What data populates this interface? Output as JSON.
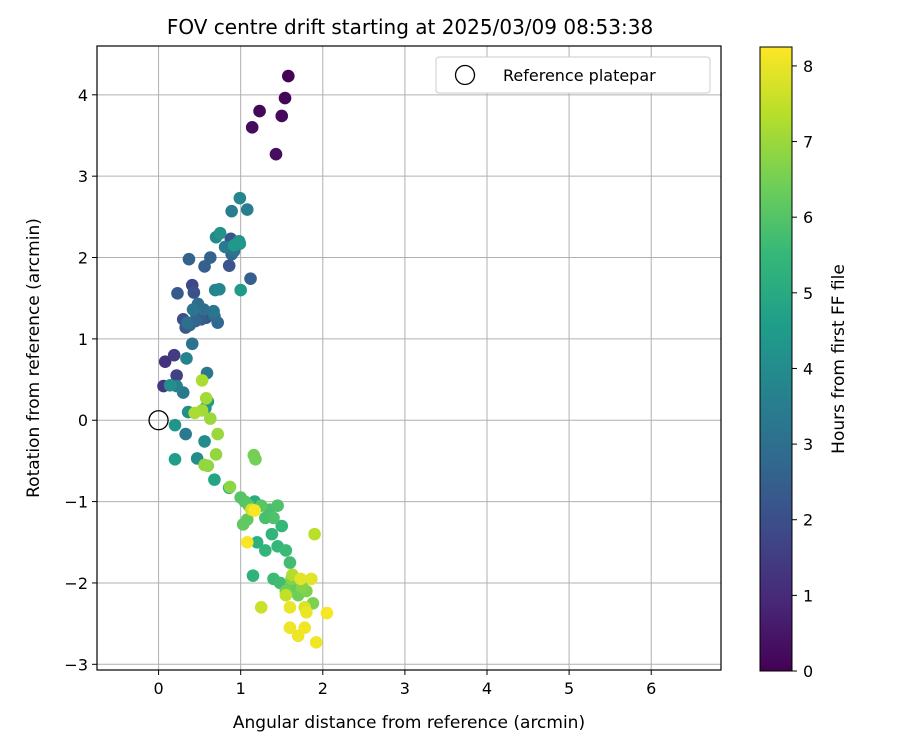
{
  "chart_data": {
    "type": "scatter",
    "title": "FOV centre drift starting at 2025/03/09 08:53:38",
    "xlabel": "Angular distance from reference (arcmin)",
    "ylabel": "Rotation from reference (arcmin)",
    "xlim": [
      -0.75,
      6.85
    ],
    "ylim": [
      -3.07,
      4.6
    ],
    "xticks": [
      0,
      1,
      2,
      3,
      4,
      5,
      6
    ],
    "yticks": [
      -3,
      -2,
      -1,
      0,
      1,
      2,
      3,
      4
    ],
    "grid": true,
    "legend": {
      "location": "top-right",
      "entries": [
        "Reference platepar"
      ]
    },
    "reference_point": {
      "x": 0,
      "y": 0
    },
    "colorbar": {
      "label": "Hours from first FF file",
      "colormap": "viridis",
      "range": [
        0,
        8.25
      ],
      "ticks": [
        0,
        1,
        2,
        3,
        4,
        5,
        6,
        7,
        8
      ]
    },
    "point_color_value": "hours",
    "points": [
      {
        "x": 1.58,
        "y": 4.23,
        "hours": 0.05
      },
      {
        "x": 1.54,
        "y": 3.96,
        "hours": 0.1
      },
      {
        "x": 1.23,
        "y": 3.8,
        "hours": 0.15
      },
      {
        "x": 1.5,
        "y": 3.74,
        "hours": 0.2
      },
      {
        "x": 1.14,
        "y": 3.6,
        "hours": 0.25
      },
      {
        "x": 1.43,
        "y": 3.27,
        "hours": 0.3
      },
      {
        "x": 0.08,
        "y": 0.72,
        "hours": 1.2
      },
      {
        "x": 0.06,
        "y": 0.42,
        "hours": 1.3
      },
      {
        "x": 0.19,
        "y": 0.8,
        "hours": 1.5
      },
      {
        "x": 0.22,
        "y": 0.55,
        "hours": 1.6
      },
      {
        "x": 0.41,
        "y": 1.66,
        "hours": 1.8
      },
      {
        "x": 0.3,
        "y": 1.24,
        "hours": 2.0
      },
      {
        "x": 0.43,
        "y": 1.57,
        "hours": 2.1
      },
      {
        "x": 0.58,
        "y": 1.26,
        "hours": 2.1
      },
      {
        "x": 0.86,
        "y": 1.9,
        "hours": 2.2
      },
      {
        "x": 0.88,
        "y": 2.23,
        "hours": 2.2
      },
      {
        "x": 0.23,
        "y": 1.56,
        "hours": 2.3
      },
      {
        "x": 0.33,
        "y": 1.14,
        "hours": 2.3
      },
      {
        "x": 0.46,
        "y": 1.3,
        "hours": 2.4
      },
      {
        "x": 0.52,
        "y": 1.24,
        "hours": 2.4
      },
      {
        "x": 0.56,
        "y": 1.89,
        "hours": 2.5
      },
      {
        "x": 1.12,
        "y": 1.74,
        "hours": 2.5
      },
      {
        "x": 0.37,
        "y": 1.98,
        "hours": 2.6
      },
      {
        "x": 0.63,
        "y": 2.0,
        "hours": 2.6
      },
      {
        "x": 0.38,
        "y": 1.17,
        "hours": 2.7
      },
      {
        "x": 0.45,
        "y": 1.22,
        "hours": 2.7
      },
      {
        "x": 0.72,
        "y": 1.2,
        "hours": 2.8
      },
      {
        "x": 0.89,
        "y": 2.04,
        "hours": 2.8
      },
      {
        "x": 0.48,
        "y": 1.43,
        "hours": 2.9
      },
      {
        "x": 0.68,
        "y": 1.28,
        "hours": 2.9
      },
      {
        "x": 0.35,
        "y": 1.2,
        "hours": 3.0
      },
      {
        "x": 0.55,
        "y": 1.36,
        "hours": 3.0
      },
      {
        "x": 0.41,
        "y": 0.94,
        "hours": 3.1
      },
      {
        "x": 0.92,
        "y": 2.08,
        "hours": 3.1
      },
      {
        "x": 0.42,
        "y": 1.36,
        "hours": 3.2
      },
      {
        "x": 0.67,
        "y": 1.34,
        "hours": 3.2
      },
      {
        "x": 0.59,
        "y": 0.58,
        "hours": 3.3
      },
      {
        "x": 0.3,
        "y": 0.34,
        "hours": 3.3
      },
      {
        "x": 0.33,
        "y": -0.17,
        "hours": 3.4
      },
      {
        "x": 0.81,
        "y": 2.13,
        "hours": 3.4
      },
      {
        "x": 0.89,
        "y": 2.57,
        "hours": 3.5
      },
      {
        "x": 1.08,
        "y": 2.59,
        "hours": 3.5
      },
      {
        "x": 0.22,
        "y": 0.42,
        "hours": 3.6
      },
      {
        "x": 0.34,
        "y": 0.76,
        "hours": 3.7
      },
      {
        "x": 0.69,
        "y": 1.6,
        "hours": 3.7
      },
      {
        "x": 0.74,
        "y": 1.61,
        "hours": 3.8
      },
      {
        "x": 0.99,
        "y": 2.73,
        "hours": 3.8
      },
      {
        "x": 0.7,
        "y": 2.25,
        "hours": 3.9
      },
      {
        "x": 0.56,
        "y": -0.26,
        "hours": 4.0
      },
      {
        "x": 0.47,
        "y": -0.47,
        "hours": 4.0
      },
      {
        "x": 0.14,
        "y": 0.43,
        "hours": 4.1
      },
      {
        "x": 0.36,
        "y": 0.1,
        "hours": 4.1
      },
      {
        "x": 0.75,
        "y": 2.3,
        "hours": 4.2
      },
      {
        "x": 0.98,
        "y": 2.2,
        "hours": 4.2
      },
      {
        "x": 0.2,
        "y": -0.06,
        "hours": 4.3
      },
      {
        "x": 0.57,
        "y": 0.15,
        "hours": 4.3
      },
      {
        "x": 0.92,
        "y": 2.15,
        "hours": 4.4
      },
      {
        "x": 0.99,
        "y": 2.17,
        "hours": 4.4
      },
      {
        "x": 0.6,
        "y": 0.23,
        "hours": 4.5
      },
      {
        "x": 1.0,
        "y": 1.6,
        "hours": 4.5
      },
      {
        "x": 0.2,
        "y": -0.48,
        "hours": 4.6
      },
      {
        "x": 0.68,
        "y": -0.73,
        "hours": 4.8
      },
      {
        "x": 0.86,
        "y": -0.83,
        "hours": 5.0
      },
      {
        "x": 1.17,
        "y": -1.0,
        "hours": 5.1
      },
      {
        "x": 1.2,
        "y": -1.5,
        "hours": 5.2
      },
      {
        "x": 1.15,
        "y": -1.91,
        "hours": 5.3
      },
      {
        "x": 1.3,
        "y": -1.6,
        "hours": 5.4
      },
      {
        "x": 1.38,
        "y": -1.4,
        "hours": 5.4
      },
      {
        "x": 1.45,
        "y": -1.55,
        "hours": 5.5
      },
      {
        "x": 1.5,
        "y": -1.3,
        "hours": 5.5
      },
      {
        "x": 1.4,
        "y": -1.95,
        "hours": 5.6
      },
      {
        "x": 1.55,
        "y": -1.6,
        "hours": 5.6
      },
      {
        "x": 1.6,
        "y": -1.75,
        "hours": 5.7
      },
      {
        "x": 1.48,
        "y": -2.0,
        "hours": 5.7
      },
      {
        "x": 1.3,
        "y": -1.2,
        "hours": 5.8
      },
      {
        "x": 1.35,
        "y": -1.1,
        "hours": 5.8
      },
      {
        "x": 1.4,
        "y": -1.2,
        "hours": 5.9
      },
      {
        "x": 1.45,
        "y": -1.05,
        "hours": 5.9
      },
      {
        "x": 1.0,
        "y": -0.95,
        "hours": 6.0
      },
      {
        "x": 1.05,
        "y": -1.0,
        "hours": 6.0
      },
      {
        "x": 1.1,
        "y": -1.05,
        "hours": 6.1
      },
      {
        "x": 1.25,
        "y": -1.05,
        "hours": 6.1
      },
      {
        "x": 1.03,
        "y": -1.28,
        "hours": 6.2
      },
      {
        "x": 1.08,
        "y": -1.22,
        "hours": 6.2
      },
      {
        "x": 1.6,
        "y": -2.05,
        "hours": 6.3
      },
      {
        "x": 1.65,
        "y": -2.0,
        "hours": 6.3
      },
      {
        "x": 1.55,
        "y": -2.1,
        "hours": 6.4
      },
      {
        "x": 1.7,
        "y": -2.15,
        "hours": 6.4
      },
      {
        "x": 1.16,
        "y": -0.43,
        "hours": 6.5
      },
      {
        "x": 1.18,
        "y": -0.48,
        "hours": 6.5
      },
      {
        "x": 1.8,
        "y": -2.1,
        "hours": 6.6
      },
      {
        "x": 1.88,
        "y": -2.25,
        "hours": 6.6
      },
      {
        "x": 1.62,
        "y": -1.95,
        "hours": 6.7
      },
      {
        "x": 1.75,
        "y": -2.05,
        "hours": 6.7
      },
      {
        "x": 0.6,
        "y": -0.56,
        "hours": 6.8
      },
      {
        "x": 0.87,
        "y": -0.82,
        "hours": 6.8
      },
      {
        "x": 0.7,
        "y": -0.42,
        "hours": 6.9
      },
      {
        "x": 0.56,
        "y": -0.55,
        "hours": 6.9
      },
      {
        "x": 0.72,
        "y": -0.17,
        "hours": 7.0
      },
      {
        "x": 0.63,
        "y": 0.02,
        "hours": 7.0
      },
      {
        "x": 0.58,
        "y": 0.27,
        "hours": 7.1
      },
      {
        "x": 0.53,
        "y": 0.12,
        "hours": 7.1
      },
      {
        "x": 0.44,
        "y": 0.09,
        "hours": 7.2
      },
      {
        "x": 0.53,
        "y": 0.49,
        "hours": 7.2
      },
      {
        "x": 1.63,
        "y": -1.9,
        "hours": 7.3
      },
      {
        "x": 1.9,
        "y": -1.4,
        "hours": 7.4
      },
      {
        "x": 1.55,
        "y": -2.15,
        "hours": 7.5
      },
      {
        "x": 1.25,
        "y": -2.3,
        "hours": 7.6
      },
      {
        "x": 1.13,
        "y": -1.1,
        "hours": 7.7
      },
      {
        "x": 1.78,
        "y": -2.3,
        "hours": 7.8
      },
      {
        "x": 1.86,
        "y": -1.95,
        "hours": 7.9
      },
      {
        "x": 1.73,
        "y": -1.95,
        "hours": 7.9
      },
      {
        "x": 1.6,
        "y": -2.3,
        "hours": 8.0
      },
      {
        "x": 1.8,
        "y": -2.36,
        "hours": 8.0
      },
      {
        "x": 1.6,
        "y": -2.55,
        "hours": 8.05
      },
      {
        "x": 1.7,
        "y": -2.65,
        "hours": 8.05
      },
      {
        "x": 1.78,
        "y": -2.55,
        "hours": 8.1
      },
      {
        "x": 1.92,
        "y": -2.73,
        "hours": 8.1
      },
      {
        "x": 2.05,
        "y": -2.37,
        "hours": 8.15
      },
      {
        "x": 1.08,
        "y": -1.5,
        "hours": 8.2
      },
      {
        "x": 1.17,
        "y": -1.11,
        "hours": 8.2
      }
    ]
  }
}
